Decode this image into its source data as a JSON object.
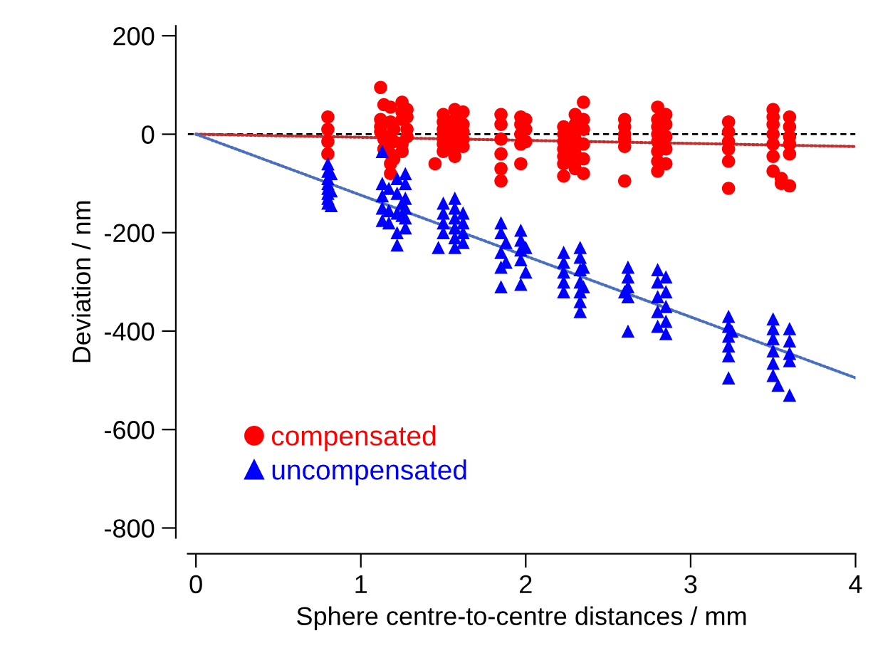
{
  "chart_data": {
    "type": "scatter",
    "xlabel": "Sphere centre-to-centre distances / mm",
    "ylabel": "Deviation / nm",
    "xlim": [
      -0.05,
      4
    ],
    "xticks": [
      0,
      1,
      2,
      3,
      4
    ],
    "ylim": [
      -820,
      220
    ],
    "yticks": [
      -800,
      -600,
      -400,
      -200,
      0,
      200
    ],
    "grid": false,
    "legend": "bottom left",
    "ref_lines": [
      {
        "axis": "y",
        "value": 0,
        "color": "#000000",
        "line_style": "dashed"
      }
    ],
    "series": [
      {
        "name": "compensated",
        "color": "#ff0000",
        "marker": "circle",
        "x": [
          0.8,
          0.8,
          0.8,
          0.8,
          1.12,
          1.12,
          1.12,
          1.12,
          1.14,
          1.14,
          1.14,
          1.18,
          1.18,
          1.18,
          1.18,
          1.18,
          1.18,
          1.2,
          1.2,
          1.2,
          1.25,
          1.25,
          1.25,
          1.25,
          1.25,
          1.28,
          1.28,
          1.28,
          1.28,
          1.45,
          1.5,
          1.5,
          1.5,
          1.5,
          1.5,
          1.5,
          1.5,
          1.57,
          1.57,
          1.57,
          1.57,
          1.57,
          1.57,
          1.57,
          1.62,
          1.62,
          1.62,
          1.62,
          1.62,
          1.85,
          1.85,
          1.85,
          1.85,
          1.85,
          1.85,
          1.97,
          1.97,
          1.97,
          1.97,
          1.97,
          2.0,
          2.0,
          2.0,
          2.23,
          2.23,
          2.23,
          2.23,
          2.23,
          2.23,
          2.23,
          2.3,
          2.3,
          2.3,
          2.3,
          2.3,
          2.3,
          2.3,
          2.3,
          2.35,
          2.35,
          2.35,
          2.35,
          2.35,
          2.35,
          2.6,
          2.6,
          2.6,
          2.6,
          2.6,
          2.6,
          2.8,
          2.8,
          2.8,
          2.8,
          2.8,
          2.8,
          2.8,
          2.8,
          2.85,
          2.85,
          2.85,
          2.85,
          2.85,
          3.23,
          3.23,
          3.23,
          3.23,
          3.23,
          3.23,
          3.5,
          3.5,
          3.5,
          3.5,
          3.5,
          3.5,
          3.5,
          3.55,
          3.55,
          3.6,
          3.6,
          3.6,
          3.6,
          3.6,
          3.6
        ],
        "values": [
          35,
          10,
          -15,
          -40,
          95,
          30,
          15,
          5,
          60,
          -10,
          -30,
          55,
          25,
          -5,
          -40,
          -60,
          -80,
          10,
          -15,
          -50,
          65,
          45,
          30,
          -20,
          -35,
          50,
          35,
          10,
          -5,
          -60,
          40,
          25,
          10,
          0,
          -10,
          -20,
          -35,
          50,
          30,
          15,
          0,
          -15,
          -30,
          -45,
          45,
          20,
          5,
          -10,
          -25,
          40,
          20,
          -10,
          -40,
          -70,
          -95,
          35,
          20,
          0,
          -20,
          -60,
          30,
          10,
          -15,
          15,
          0,
          -15,
          -30,
          -45,
          -60,
          -85,
          40,
          20,
          5,
          -10,
          -25,
          -40,
          -55,
          -70,
          65,
          30,
          10,
          -20,
          -50,
          -80,
          30,
          15,
          0,
          -10,
          -25,
          -95,
          55,
          30,
          15,
          0,
          -15,
          -35,
          -55,
          -75,
          40,
          20,
          -5,
          -30,
          -60,
          25,
          5,
          -15,
          -30,
          -55,
          -110,
          50,
          35,
          20,
          0,
          -20,
          -45,
          -75,
          -90,
          -100,
          35,
          15,
          -5,
          -20,
          -40,
          -105
        ]
      },
      {
        "name": "uncompensated",
        "color": "#0000ff",
        "marker": "triangle",
        "x": [
          0.8,
          0.8,
          0.8,
          0.8,
          0.8,
          0.8,
          0.8,
          0.8,
          0.82,
          0.82,
          0.82,
          1.13,
          1.13,
          1.13,
          1.13,
          1.13,
          1.17,
          1.17,
          1.17,
          1.22,
          1.22,
          1.22,
          1.22,
          1.22,
          1.25,
          1.25,
          1.27,
          1.27,
          1.27,
          1.27,
          1.27,
          1.27,
          1.47,
          1.5,
          1.5,
          1.5,
          1.5,
          1.57,
          1.57,
          1.57,
          1.57,
          1.57,
          1.57,
          1.62,
          1.62,
          1.62,
          1.62,
          1.85,
          1.85,
          1.85,
          1.85,
          1.85,
          1.88,
          1.88,
          1.97,
          1.97,
          1.97,
          1.97,
          1.97,
          2.0,
          2.0,
          2.23,
          2.23,
          2.23,
          2.23,
          2.23,
          2.33,
          2.33,
          2.33,
          2.33,
          2.33,
          2.33,
          2.33,
          2.35,
          2.35,
          2.6,
          2.62,
          2.62,
          2.62,
          2.62,
          2.62,
          2.8,
          2.8,
          2.8,
          2.8,
          2.8,
          2.85,
          2.85,
          2.85,
          2.85,
          2.85,
          3.23,
          3.23,
          3.23,
          3.23,
          3.23,
          3.23,
          3.25,
          3.5,
          3.5,
          3.5,
          3.5,
          3.5,
          3.5,
          3.53,
          3.6,
          3.6,
          3.6,
          3.6,
          3.6
        ],
        "values": [
          -60,
          -75,
          -90,
          -100,
          -110,
          -120,
          -130,
          -140,
          -80,
          -115,
          -145,
          -35,
          -100,
          -125,
          -150,
          -175,
          -110,
          -155,
          -180,
          -90,
          -120,
          -160,
          -200,
          -225,
          -140,
          -165,
          -80,
          -100,
          -130,
          -150,
          -170,
          -190,
          -230,
          -140,
          -160,
          -180,
          -200,
          -130,
          -150,
          -170,
          -190,
          -210,
          -230,
          -160,
          -180,
          -200,
          -220,
          -180,
          -200,
          -240,
          -270,
          -310,
          -220,
          -260,
          -195,
          -215,
          -235,
          -255,
          -305,
          -230,
          -280,
          -240,
          -260,
          -280,
          -300,
          -320,
          -230,
          -250,
          -275,
          -300,
          -320,
          -340,
          -360,
          -270,
          -310,
          -320,
          -270,
          -290,
          -310,
          -330,
          -400,
          -275,
          -300,
          -330,
          -360,
          -390,
          -290,
          -320,
          -350,
          -380,
          -405,
          -370,
          -390,
          -410,
          -430,
          -450,
          -495,
          -400,
          -375,
          -395,
          -415,
          -440,
          -465,
          -490,
          -510,
          -395,
          -420,
          -445,
          -460,
          -530
        ]
      },
      {
        "type": "line",
        "color": "#c03030",
        "line_style": "dotted",
        "x": [
          0,
          4
        ],
        "values": [
          0,
          -25
        ]
      },
      {
        "type": "line",
        "color": "#4a6fc0",
        "line_style": "dotted",
        "x": [
          0,
          4
        ],
        "values": [
          0,
          -495
        ]
      }
    ]
  }
}
